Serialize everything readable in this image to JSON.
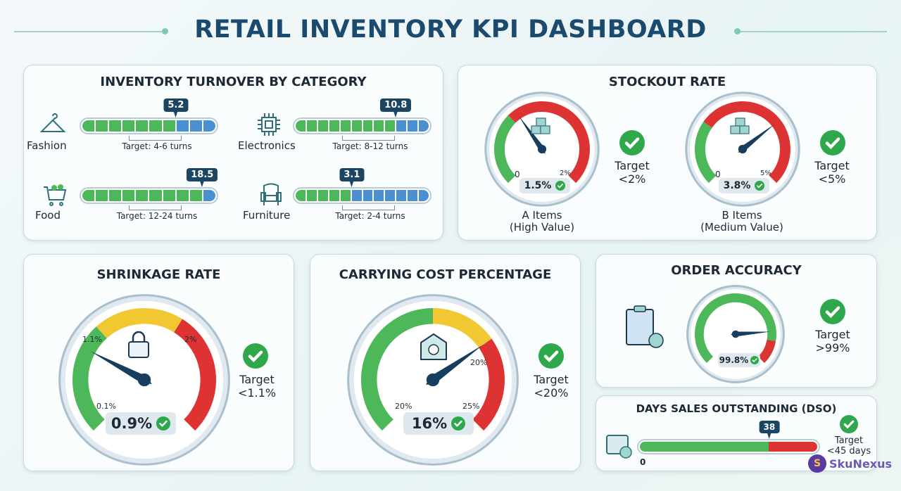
{
  "header": {
    "title": "RETAIL INVENTORY KPI DASHBOARD"
  },
  "colors": {
    "green": "#4cb85a",
    "blue": "#4a8fd0",
    "red": "#dd3333",
    "yellow": "#f2c832",
    "navy": "#1c4563",
    "check": "#2ea84b"
  },
  "turnover": {
    "title": "INVENTORY TURNOVER BY CATEGORY",
    "items": [
      {
        "label": "Fashion",
        "icon": "hanger-icon",
        "value": "5.2",
        "target": "Target: 4-6 turns"
      },
      {
        "label": "Electronics",
        "icon": "chip-icon",
        "value": "10.8",
        "target": "Target: 8-12 turns"
      },
      {
        "label": "Food",
        "icon": "cart-icon",
        "value": "18.5",
        "target": "Target: 12-24 turns"
      },
      {
        "label": "Furniture",
        "icon": "armchair-icon",
        "value": "3.1",
        "target": "Target: 2-4 turns"
      }
    ]
  },
  "stockout": {
    "title": "STOCKOUT RATE",
    "gauges": [
      {
        "min": "0",
        "max": "2%",
        "value": "1.5%",
        "target1": "Target",
        "target2": "<2%",
        "name1": "A Items",
        "name2": "(High Value)"
      },
      {
        "min": "0",
        "max": "5%",
        "value": "3.8%",
        "target1": "Target",
        "target2": "<5%",
        "name1": "B Items",
        "name2": "(Medium Value)"
      }
    ]
  },
  "shrinkage": {
    "title": "SHRINKAGE RATE",
    "low": "0.1%",
    "mid": "1.1%",
    "high": "2%",
    "value": "0.9%",
    "target1": "Target",
    "target2": "<1.1%"
  },
  "carrying": {
    "title": "CARRYING COST PERCENTAGE",
    "low": "20%",
    "mid": "20%",
    "high": "25%",
    "value": "16%",
    "target1": "Target",
    "target2": "<20%"
  },
  "accuracy": {
    "title": "ORDER ACCURACY",
    "value": "99.8%",
    "target1": "Target",
    "target2": ">99%"
  },
  "dso": {
    "title": "DAYS SALES OUTSTANDING (DSO)",
    "min": "0",
    "value": "38",
    "target1": "Target",
    "target2": "<45 days"
  },
  "brand": {
    "name": "SkuNexus"
  },
  "chart_data": [
    {
      "type": "bar",
      "title": "INVENTORY TURNOVER BY CATEGORY",
      "categories": [
        "Fashion",
        "Electronics",
        "Food",
        "Furniture"
      ],
      "values": [
        5.2,
        10.8,
        18.5,
        3.1
      ],
      "targets": [
        "4-6",
        "8-12",
        "12-24",
        "2-4"
      ]
    },
    {
      "type": "gauge",
      "title": "STOCKOUT RATE",
      "series": [
        {
          "name": "A Items (High Value)",
          "value": 1.5,
          "range": [
            0,
            2
          ],
          "target": "<2%"
        },
        {
          "name": "B Items (Medium Value)",
          "value": 3.8,
          "range": [
            0,
            5
          ],
          "target": "<5%"
        }
      ]
    },
    {
      "type": "gauge",
      "title": "SHRINKAGE RATE",
      "value": 0.9,
      "ticks": [
        "0.1%",
        "1.1%",
        "2%"
      ],
      "target": "<1.1%",
      "zones": [
        "green",
        "yellow",
        "red"
      ]
    },
    {
      "type": "gauge",
      "title": "CARRYING COST PERCENTAGE",
      "value": 16,
      "ticks": [
        "20%",
        "20%",
        "25%"
      ],
      "target": "<20%",
      "zones": [
        "green",
        "yellow",
        "red"
      ]
    },
    {
      "type": "gauge",
      "title": "ORDER ACCURACY",
      "value": 99.8,
      "target": ">99%",
      "zones": [
        "green",
        "red"
      ]
    },
    {
      "type": "bar",
      "title": "DAYS SALES OUTSTANDING (DSO)",
      "value": 38,
      "range": [
        0,
        45
      ],
      "target": "<45 days"
    }
  ]
}
